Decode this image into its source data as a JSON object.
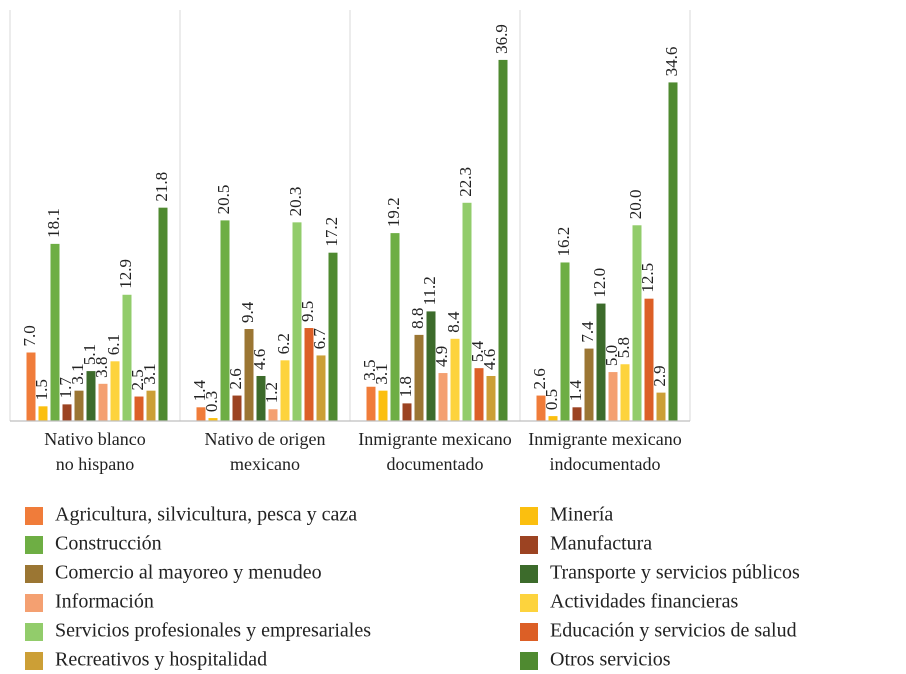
{
  "chart_data": {
    "type": "bar",
    "categories": [
      [
        "Nativo blanco",
        "no hispano"
      ],
      [
        "Nativo de origen",
        "mexicano"
      ],
      [
        "Inmigrante mexicano",
        "documentado"
      ],
      [
        "Inmigrante mexicano",
        "indocumentado"
      ]
    ],
    "ylim": [
      0,
      42
    ],
    "series": [
      {
        "name": "Agricultura, silvicultura, pesca y caza",
        "color": "#f07c3a",
        "values": [
          7.0,
          1.4,
          3.5,
          2.6
        ],
        "value_labels": [
          "7.0",
          "1.4",
          "3.5",
          "2.6"
        ]
      },
      {
        "name": "Minería",
        "color": "#fbbf0f",
        "values": [
          1.5,
          0.3,
          3.1,
          0.5
        ],
        "value_labels": [
          "1.5",
          "0.3",
          "3.1",
          "0.5"
        ]
      },
      {
        "name": "Construcción",
        "color": "#6eae44",
        "values": [
          18.1,
          20.5,
          19.2,
          16.2
        ],
        "value_labels": [
          "18.1",
          "20.5",
          "19.2",
          "16.2"
        ]
      },
      {
        "name": "Manufactura",
        "color": "#9c4322",
        "values": [
          1.7,
          2.6,
          1.8,
          1.4
        ],
        "value_labels": [
          "1.7",
          "2.6",
          "1.8",
          "1.4"
        ]
      },
      {
        "name": "Comercio al mayoreo y menudeo",
        "color": "#9b7633",
        "values": [
          3.1,
          9.4,
          8.8,
          7.4
        ],
        "value_labels": [
          "3.1",
          "9.4",
          "8.8",
          "7.4"
        ]
      },
      {
        "name": "Transporte y servicios públicos",
        "color": "#3c6b2b",
        "values": [
          5.1,
          4.6,
          11.2,
          12.0
        ],
        "value_labels": [
          "5.1",
          "4.6",
          "11.2",
          "12.0"
        ]
      },
      {
        "name": "Información",
        "color": "#f4a071",
        "values": [
          3.8,
          1.2,
          4.9,
          5.0
        ],
        "value_labels": [
          "3.8",
          "1.2",
          "4.9",
          "5.0"
        ]
      },
      {
        "name": "Actividades financieras",
        "color": "#fdd33d",
        "values": [
          6.1,
          6.2,
          8.4,
          5.8
        ],
        "value_labels": [
          "6.1",
          "6.2",
          "8.4",
          "5.8"
        ]
      },
      {
        "name": "Servicios profesionales y empresariales",
        "color": "#92cc6b",
        "values": [
          12.9,
          20.3,
          22.3,
          20.0
        ],
        "value_labels": [
          "12.9",
          "20.3",
          "22.3",
          "20.0"
        ]
      },
      {
        "name": "Educación y servicios de salud",
        "color": "#dc5f26",
        "values": [
          2.5,
          9.5,
          5.4,
          12.5
        ],
        "value_labels": [
          "2.5",
          "9.5",
          "5.4",
          "12.5"
        ]
      },
      {
        "name": "Recreativos y hospitalidad",
        "color": "#cc9f36",
        "values": [
          3.1,
          6.7,
          4.6,
          2.9
        ],
        "value_labels": [
          "3.1",
          "6.7",
          "4.6",
          "2.9"
        ]
      },
      {
        "name": "Otros servicios",
        "color": "#4f8a30",
        "values": [
          21.8,
          17.2,
          36.9,
          34.6
        ],
        "value_labels": [
          "21.8",
          "17.2",
          "36.9",
          "34.6"
        ]
      }
    ]
  }
}
